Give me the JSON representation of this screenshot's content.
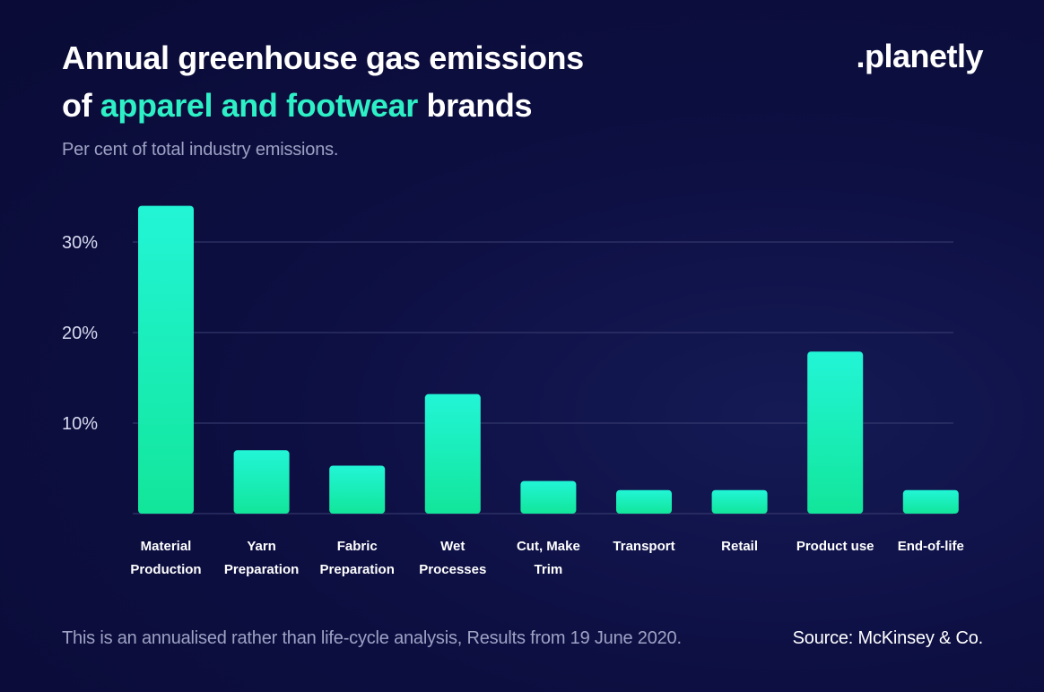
{
  "header": {
    "title_line1": "Annual greenhouse gas emissions",
    "title_of": "of",
    "title_highlight": "apparel and footwear",
    "title_end": "brands",
    "subtitle": "Per cent of total industry emissions."
  },
  "brand": {
    "logo_text": ".planetly"
  },
  "footer": {
    "note": "This is an annualised rather than life-cycle analysis, Results from 19 June 2020.",
    "source": "Source: McKinsey & Co."
  },
  "colors": {
    "accent": "#2ef0c6",
    "bar_top": "#22f5d6",
    "bar_bottom": "#12e69a",
    "grid": "#3a3f72",
    "tick_text": "#d8daf0",
    "label_text": "#ffffff"
  },
  "chart_data": {
    "type": "bar",
    "title": "Annual greenhouse gas emissions of apparel and footwear brands",
    "ylabel": "Per cent of total industry emissions.",
    "xlabel": "",
    "ylim": [
      0,
      30
    ],
    "yticks": [
      10,
      20,
      30
    ],
    "ytick_labels": [
      "10%",
      "20%",
      "30%"
    ],
    "grid": true,
    "categories": [
      [
        "Material",
        "Production"
      ],
      [
        "Yarn",
        "Preparation"
      ],
      [
        "Fabric",
        "Preparation"
      ],
      [
        "Wet",
        "Processes"
      ],
      [
        "Cut, Make",
        "Trim"
      ],
      [
        "Transport"
      ],
      [
        "Retail"
      ],
      [
        "Product use"
      ],
      [
        "End-of-life"
      ]
    ],
    "values": [
      34,
      7,
      5.3,
      13.2,
      3.6,
      2.6,
      2.6,
      17.9,
      2.6
    ]
  }
}
